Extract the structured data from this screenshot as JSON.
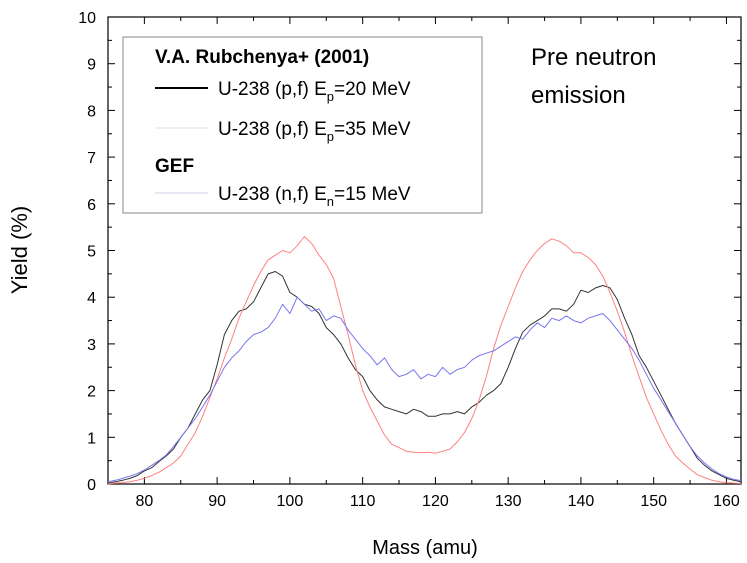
{
  "chart_data": {
    "type": "line",
    "xlabel": "Mass (amu)",
    "ylabel": "Yield (%)",
    "xlim": [
      75,
      162
    ],
    "ylim": [
      0,
      10
    ],
    "xticks": [
      80,
      90,
      100,
      110,
      120,
      130,
      140,
      150,
      160
    ],
    "yticks": [
      0,
      1,
      2,
      3,
      4,
      5,
      6,
      7,
      8,
      9,
      10
    ],
    "grid": false,
    "legend_position": "top-left",
    "legend": {
      "group1_title": "V.A. Rubchenya+ (2001)",
      "group2_title": "GEF",
      "entries": [
        {
          "prefix": "U-238 (p,f) E",
          "sub": "p",
          "suffix": "=20 MeV"
        },
        {
          "prefix": "U-238 (p,f) E",
          "sub": "p",
          "suffix": "=35 MeV"
        },
        {
          "prefix": "U-238 (n,f) E",
          "sub": "n",
          "suffix": "=15 MeV"
        }
      ]
    },
    "annotation": [
      "Pre neutron",
      "emission"
    ],
    "series": [
      {
        "name": "U-238 (p,f) Ep=20 MeV",
        "color": "#333333",
        "x": [
          75,
          76,
          77,
          78,
          79,
          80,
          81,
          82,
          83,
          84,
          85,
          86,
          87,
          88,
          89,
          90,
          91,
          92,
          93,
          94,
          95,
          96,
          97,
          98,
          99,
          100,
          101,
          102,
          103,
          104,
          105,
          106,
          107,
          108,
          109,
          110,
          111,
          112,
          113,
          114,
          115,
          116,
          117,
          118,
          119,
          120,
          121,
          122,
          123,
          124,
          125,
          126,
          127,
          128,
          129,
          130,
          131,
          132,
          133,
          134,
          135,
          136,
          137,
          138,
          139,
          140,
          141,
          142,
          143,
          144,
          145,
          146,
          147,
          148,
          149,
          150,
          151,
          152,
          153,
          154,
          155,
          156,
          157,
          158,
          159,
          160,
          161,
          162
        ],
        "y": [
          0.02,
          0.05,
          0.08,
          0.12,
          0.18,
          0.28,
          0.35,
          0.48,
          0.6,
          0.75,
          1.0,
          1.2,
          1.5,
          1.8,
          2.0,
          2.55,
          3.2,
          3.5,
          3.7,
          3.75,
          3.9,
          4.2,
          4.5,
          4.55,
          4.45,
          4.1,
          4.0,
          3.85,
          3.8,
          3.65,
          3.35,
          3.2,
          3.0,
          2.7,
          2.45,
          2.3,
          2.0,
          1.8,
          1.65,
          1.6,
          1.55,
          1.5,
          1.6,
          1.55,
          1.45,
          1.45,
          1.5,
          1.5,
          1.55,
          1.5,
          1.65,
          1.75,
          1.9,
          2.0,
          2.15,
          2.5,
          2.9,
          3.25,
          3.4,
          3.5,
          3.6,
          3.75,
          3.75,
          3.7,
          3.85,
          4.15,
          4.1,
          4.2,
          4.25,
          4.2,
          3.95,
          3.55,
          3.2,
          2.75,
          2.5,
          2.2,
          1.9,
          1.6,
          1.3,
          1.05,
          0.8,
          0.55,
          0.4,
          0.28,
          0.2,
          0.12,
          0.08,
          0.05
        ]
      },
      {
        "name": "U-238 (p,f) Ep=35 MeV",
        "color": "#ff8080",
        "x": [
          75,
          76,
          77,
          78,
          79,
          80,
          81,
          82,
          83,
          84,
          85,
          86,
          87,
          88,
          89,
          90,
          91,
          92,
          93,
          94,
          95,
          96,
          97,
          98,
          99,
          100,
          101,
          102,
          103,
          104,
          105,
          106,
          107,
          108,
          109,
          110,
          111,
          112,
          113,
          114,
          115,
          116,
          117,
          118,
          119,
          120,
          121,
          122,
          123,
          124,
          125,
          126,
          127,
          128,
          129,
          130,
          131,
          132,
          133,
          134,
          135,
          136,
          137,
          138,
          139,
          140,
          141,
          142,
          143,
          144,
          145,
          146,
          147,
          148,
          149,
          150,
          151,
          152,
          153,
          154,
          155,
          156,
          157,
          158,
          159,
          160,
          161,
          162
        ],
        "y": [
          0.0,
          0.02,
          0.03,
          0.05,
          0.08,
          0.12,
          0.18,
          0.25,
          0.35,
          0.45,
          0.6,
          0.85,
          1.1,
          1.45,
          1.85,
          2.25,
          2.7,
          3.1,
          3.55,
          3.9,
          4.25,
          4.55,
          4.8,
          4.9,
          5.0,
          4.95,
          5.1,
          5.3,
          5.15,
          4.9,
          4.7,
          4.4,
          3.8,
          3.2,
          2.55,
          2.0,
          1.65,
          1.35,
          1.05,
          0.85,
          0.78,
          0.7,
          0.68,
          0.67,
          0.68,
          0.66,
          0.7,
          0.75,
          0.9,
          1.1,
          1.4,
          1.8,
          2.3,
          2.9,
          3.4,
          3.8,
          4.2,
          4.55,
          4.8,
          5.0,
          5.15,
          5.25,
          5.2,
          5.1,
          4.95,
          4.95,
          4.85,
          4.7,
          4.45,
          4.1,
          3.7,
          3.25,
          2.75,
          2.3,
          1.85,
          1.5,
          1.15,
          0.85,
          0.6,
          0.45,
          0.32,
          0.2,
          0.14,
          0.08,
          0.05,
          0.03,
          0.02,
          0.01
        ]
      },
      {
        "name": "U-238 (n,f) En=15 MeV",
        "color": "#7777ee",
        "x": [
          75,
          76,
          77,
          78,
          79,
          80,
          81,
          82,
          83,
          84,
          85,
          86,
          87,
          88,
          89,
          90,
          91,
          92,
          93,
          94,
          95,
          96,
          97,
          98,
          99,
          100,
          101,
          102,
          103,
          104,
          105,
          106,
          107,
          108,
          109,
          110,
          111,
          112,
          113,
          114,
          115,
          116,
          117,
          118,
          119,
          120,
          121,
          122,
          123,
          124,
          125,
          126,
          127,
          128,
          129,
          130,
          131,
          132,
          133,
          134,
          135,
          136,
          137,
          138,
          139,
          140,
          141,
          142,
          143,
          144,
          145,
          146,
          147,
          148,
          149,
          150,
          151,
          152,
          153,
          154,
          155,
          156,
          157,
          158,
          159,
          160,
          161,
          162
        ],
        "y": [
          0.05,
          0.08,
          0.12,
          0.17,
          0.22,
          0.3,
          0.4,
          0.5,
          0.62,
          0.8,
          1.0,
          1.2,
          1.4,
          1.65,
          1.9,
          2.2,
          2.5,
          2.7,
          2.85,
          3.05,
          3.2,
          3.25,
          3.35,
          3.55,
          3.85,
          3.65,
          4.0,
          3.85,
          3.7,
          3.75,
          3.5,
          3.6,
          3.55,
          3.3,
          3.1,
          2.9,
          2.75,
          2.55,
          2.7,
          2.45,
          2.3,
          2.35,
          2.45,
          2.25,
          2.35,
          2.3,
          2.5,
          2.35,
          2.45,
          2.5,
          2.65,
          2.75,
          2.8,
          2.85,
          2.95,
          3.05,
          3.15,
          3.1,
          3.3,
          3.45,
          3.35,
          3.55,
          3.5,
          3.6,
          3.5,
          3.45,
          3.55,
          3.6,
          3.65,
          3.5,
          3.3,
          3.1,
          2.9,
          2.65,
          2.35,
          2.05,
          1.8,
          1.55,
          1.3,
          1.05,
          0.8,
          0.6,
          0.45,
          0.32,
          0.22,
          0.15,
          0.1,
          0.07
        ]
      }
    ]
  }
}
